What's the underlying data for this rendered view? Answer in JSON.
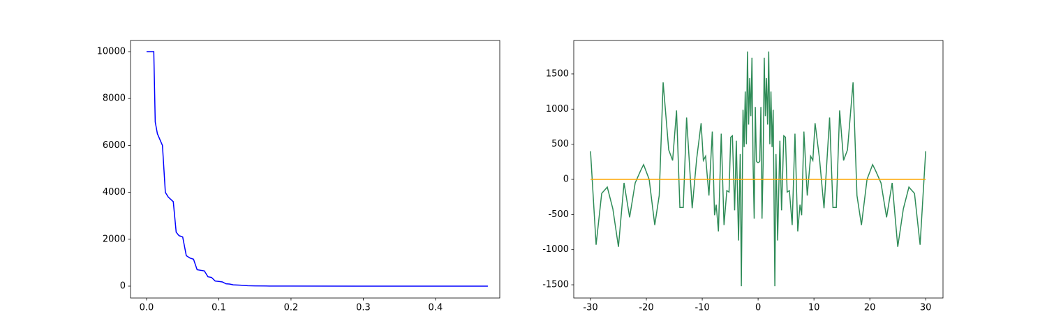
{
  "chart_data": [
    {
      "type": "line",
      "series": [
        {
          "color": "#0000ff",
          "x": [
            0,
            0.01,
            0.012,
            0.015,
            0.022,
            0.026,
            0.03,
            0.037,
            0.041,
            0.045,
            0.05,
            0.055,
            0.06,
            0.065,
            0.07,
            0.08,
            0.085,
            0.09,
            0.095,
            0.1,
            0.105,
            0.11,
            0.115,
            0.12,
            0.13,
            0.14,
            0.15,
            0.17,
            0.2,
            0.3,
            0.4725
          ],
          "values": [
            10000,
            10000,
            7000,
            6500,
            6000,
            4000,
            3800,
            3600,
            2300,
            2150,
            2100,
            1300,
            1200,
            1150,
            700,
            650,
            400,
            370,
            220,
            200,
            180,
            100,
            90,
            55,
            40,
            20,
            12,
            5,
            2,
            0,
            0
          ]
        }
      ],
      "xlim": [
        -0.0222,
        0.489
      ],
      "xticks": [
        {
          "value": 0,
          "label": "0.0"
        },
        0.1,
        0.2,
        0.3,
        0.4
      ],
      "ylim": [
        -506,
        10476
      ],
      "yticks": [
        0,
        2000,
        4000,
        6000,
        8000,
        10000
      ]
    },
    {
      "type": "line",
      "series": [
        {
          "color": "#2e8b57",
          "x": [
            -30,
            -29,
            -28,
            -27,
            -26,
            -25,
            -24,
            -23,
            -22,
            -21,
            -20.5,
            -19.5,
            -18.5,
            -17.7,
            -17,
            -16,
            -15.3,
            -14.6,
            -14,
            -13.4,
            -12.8,
            -11.8,
            -11,
            -10.2,
            -9.8,
            -9.4,
            -8.8,
            -8.2,
            -7.8,
            -7.5,
            -7.1,
            -6.6,
            -6.1,
            -5.6,
            -5.2,
            -4.9,
            -4.6,
            -4.2,
            -3.9,
            -3.5,
            -3.2,
            -3.0,
            -2.7,
            -2.5,
            -2.3,
            -2.1,
            -1.9,
            -1.7,
            -1.5,
            -1.3,
            -1.1,
            -0.9,
            -0.7,
            -0.5,
            -0.3,
            -0.1,
            0,
            0.1,
            0.3,
            0.5,
            0.7,
            0.9,
            1.1,
            1.3,
            1.5,
            1.7,
            1.9,
            2.1,
            2.3,
            2.5,
            2.7,
            3.0,
            3.2,
            3.5,
            3.9,
            4.2,
            4.6,
            4.9,
            5.2,
            5.6,
            6.1,
            6.6,
            7.1,
            7.5,
            7.8,
            8.2,
            8.8,
            9.4,
            9.8,
            10.2,
            11,
            11.8,
            12.8,
            13.4,
            14,
            14.6,
            15.3,
            16,
            17,
            17.7,
            18.5,
            19.5,
            20.5,
            21,
            22,
            23,
            24,
            25,
            26,
            27,
            28,
            29,
            30
          ],
          "values": [
            400,
            -930,
            -200,
            -110,
            -420,
            -960,
            -50,
            -540,
            -50,
            130,
            210,
            0,
            -650,
            -230,
            1380,
            420,
            270,
            980,
            -400,
            -400,
            880,
            -410,
            290,
            800,
            270,
            330,
            -230,
            680,
            -510,
            -360,
            -740,
            650,
            -650,
            -160,
            -180,
            600,
            620,
            -440,
            550,
            -870,
            360,
            -1520,
            990,
            460,
            1250,
            500,
            1820,
            780,
            1440,
            900,
            1730,
            230,
            -560,
            1030,
            260,
            240,
            240,
            240,
            260,
            1030,
            -560,
            230,
            1730,
            900,
            1440,
            780,
            1820,
            500,
            1250,
            460,
            990,
            -1520,
            360,
            -870,
            550,
            -440,
            620,
            600,
            -180,
            -160,
            -650,
            650,
            -740,
            -360,
            -510,
            680,
            -230,
            330,
            270,
            800,
            290,
            -410,
            880,
            -400,
            -400,
            980,
            270,
            420,
            1380,
            -230,
            -650,
            0,
            210,
            130,
            -50,
            -540,
            -50,
            -960,
            -420,
            -110,
            -200,
            -930,
            400
          ]
        },
        {
          "color": "#ffa500",
          "x": [
            -30,
            30
          ],
          "values": [
            0,
            0
          ]
        }
      ],
      "xlim": [
        -33,
        33.1
      ],
      "xticks": [
        -30,
        -20,
        -10,
        0,
        10,
        20,
        30
      ],
      "ylim": [
        -1688,
        1976
      ],
      "yticks": [
        -1500,
        -1000,
        -500,
        0,
        500,
        1000,
        1500
      ]
    }
  ]
}
